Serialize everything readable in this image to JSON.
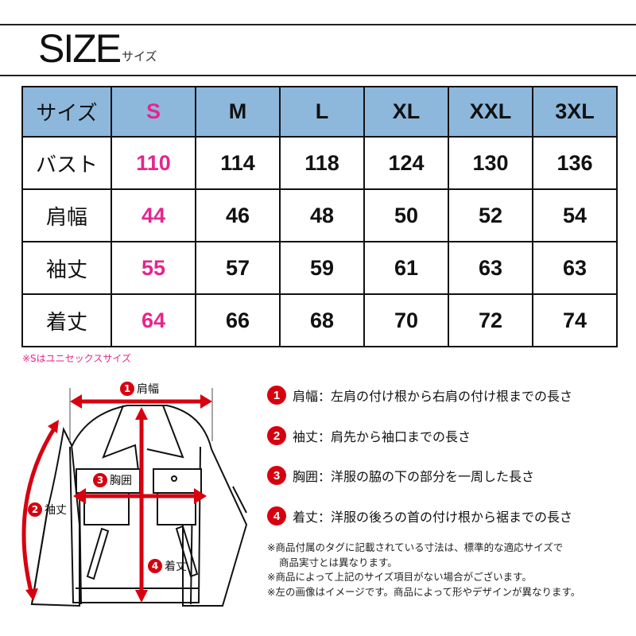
{
  "header": {
    "title": "SIZE",
    "subtitle": "サイズ"
  },
  "table": {
    "columns": [
      "サイズ",
      "S",
      "M",
      "L",
      "XL",
      "XXL",
      "3XL"
    ],
    "rows": [
      {
        "label": "バスト",
        "values": [
          "110",
          "114",
          "118",
          "124",
          "130",
          "136"
        ]
      },
      {
        "label": "肩幅",
        "values": [
          "44",
          "46",
          "48",
          "50",
          "52",
          "54"
        ]
      },
      {
        "label": "袖丈",
        "values": [
          "55",
          "57",
          "59",
          "61",
          "63",
          "63"
        ]
      },
      {
        "label": "着丈",
        "values": [
          "64",
          "66",
          "68",
          "70",
          "72",
          "74"
        ]
      }
    ]
  },
  "size_note": "※Sはユニセックスサイズ",
  "diagram_labels": [
    {
      "num": "1",
      "text": "肩幅"
    },
    {
      "num": "2",
      "text": "袖丈"
    },
    {
      "num": "3",
      "text": "胸囲"
    },
    {
      "num": "4",
      "text": "着丈"
    }
  ],
  "legend": [
    {
      "num": "1",
      "term": "肩幅",
      "desc": "：左肩の付け根から右肩の付け根までの長さ"
    },
    {
      "num": "2",
      "term": "袖丈",
      "desc": "：肩先から袖口までの長さ"
    },
    {
      "num": "3",
      "term": "胸囲",
      "desc": "：洋服の脇の下の部分を一周した長さ"
    },
    {
      "num": "4",
      "term": "着丈",
      "desc": "：洋服の後ろの首の付け根から裾までの長さ"
    }
  ],
  "notes": [
    "※商品付属のタグに記載されている寸法は、標準的な適応サイズで",
    "商品実寸とは異なります。",
    "※商品によって上記のサイズ項目がない場合がございます。",
    "※左の画像はイメージです。商品によって形やデザインが異なります。"
  ],
  "colors": {
    "header_bg": "#8db8dc",
    "accent_pink": "#e4268c",
    "marker_red": "#d7000f"
  }
}
